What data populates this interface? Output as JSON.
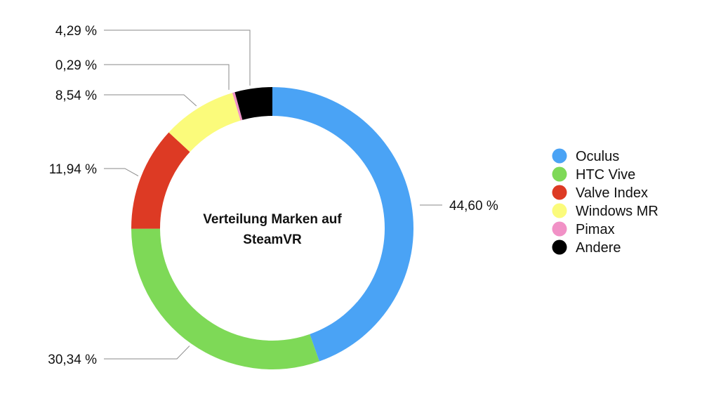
{
  "chart_data": {
    "type": "pie",
    "title": "Verteilung Marken auf SteamVR",
    "title_lines": [
      "Verteilung Marken auf",
      "SteamVR"
    ],
    "legend_position": "right",
    "slices": [
      {
        "name": "Oculus",
        "value": 44.6,
        "label": "44,60 %",
        "color": "#4aa3f5"
      },
      {
        "name": "HTC Vive",
        "value": 30.34,
        "label": "30,34 %",
        "color": "#7ed957"
      },
      {
        "name": "Valve Index",
        "value": 11.94,
        "label": "11,94 %",
        "color": "#dd3a24"
      },
      {
        "name": "Windows MR",
        "value": 8.54,
        "label": "8,54 %",
        "color": "#fbfb7b"
      },
      {
        "name": "Pimax",
        "value": 0.29,
        "label": "0,29 %",
        "color": "#f191c6"
      },
      {
        "name": "Andere",
        "value": 4.29,
        "label": "4,29 %",
        "color": "#000000"
      }
    ]
  }
}
